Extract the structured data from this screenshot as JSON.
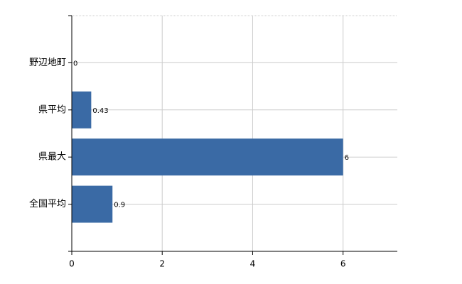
{
  "chart_data": {
    "type": "hbar",
    "categories": [
      "野辺地町",
      "県平均",
      "県最大",
      "全国平均"
    ],
    "values": [
      0,
      0.43,
      6,
      0.9
    ],
    "color": "#3a6aa5",
    "xlim": [
      0,
      7.2
    ],
    "xticks": [
      0,
      2,
      4,
      6
    ],
    "grid": true
  }
}
